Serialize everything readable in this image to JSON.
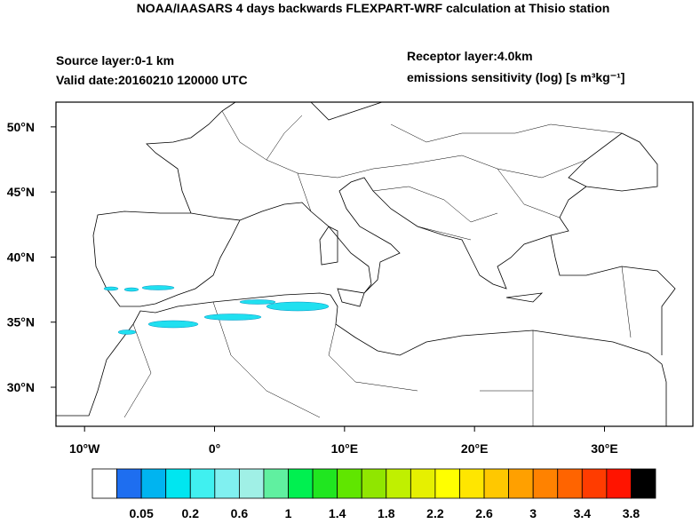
{
  "header": {
    "title": "NOAA/IAASARS 4 days backwards FLEXPART-WRF calculation at Thisio station",
    "source_layer": "Source layer:0-1 km",
    "valid_date": "Valid date:20160210 120000 UTC",
    "receptor_layer": "Receptor layer:4.0km",
    "units": "emissions sensitivity (log) [s m³kg⁻¹]"
  },
  "map": {
    "xlim": [
      -12.2,
      36.8
    ],
    "ylim": [
      27.0,
      51.9
    ],
    "xticks": [
      {
        "value": -10,
        "label": "10°W"
      },
      {
        "value": 0,
        "label": "0°"
      },
      {
        "value": 10,
        "label": "10°E"
      },
      {
        "value": 20,
        "label": "20°E"
      },
      {
        "value": 30,
        "label": "30°E"
      }
    ],
    "yticks": [
      {
        "value": 30,
        "label": "30°N"
      },
      {
        "value": 35,
        "label": "35°N"
      },
      {
        "value": 40,
        "label": "40°N"
      },
      {
        "value": 45,
        "label": "45°N"
      },
      {
        "value": 50,
        "label": "50°N"
      }
    ]
  },
  "colorbar": {
    "colors": [
      "#ffffff",
      "#1e6ef0",
      "#00b4f0",
      "#00e6f0",
      "#40f0f0",
      "#80f0f0",
      "#a0f0e6",
      "#60f0a0",
      "#00f050",
      "#20e620",
      "#60e600",
      "#90e600",
      "#c0f000",
      "#e6f000",
      "#ffff00",
      "#ffe600",
      "#ffc800",
      "#ffa000",
      "#ff8200",
      "#ff6400",
      "#ff3c00",
      "#ff1400",
      "#000000"
    ],
    "labels": [
      0.05,
      0.2,
      0.6,
      1,
      1.4,
      1.8,
      2.2,
      2.6,
      3,
      3.4,
      3.8
    ]
  }
}
